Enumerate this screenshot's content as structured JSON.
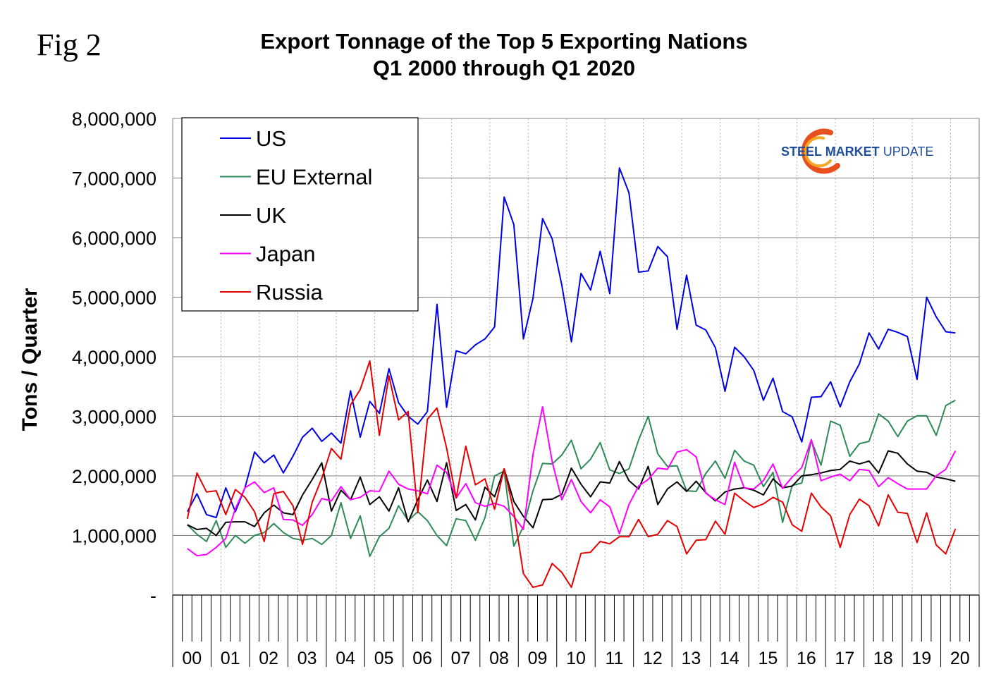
{
  "figure_label": "Fig 2",
  "logo": {
    "text_bold": "STEEL",
    "text_mid": " MARKET",
    "text_light": " UPDATE",
    "colors": {
      "text": "#1f4e9a",
      "arc_outer": "#e8501f",
      "arc_inner": "#f5a623"
    }
  },
  "chart_data": {
    "type": "line",
    "title": "Export Tonnage of the Top 5 Exporting Nations",
    "subtitle": "Q1 2000 through Q1 2020",
    "xlabel": "",
    "ylabel": "Tons / Quarter",
    "ylim": [
      0,
      8000000
    ],
    "y_ticks": [
      0,
      1000000,
      2000000,
      3000000,
      4000000,
      5000000,
      6000000,
      7000000,
      8000000
    ],
    "y_tick_labels": [
      "-",
      "1,000,000",
      "2,000,000",
      "3,000,000",
      "4,000,000",
      "5,000,000",
      "6,000,000",
      "7,000,000",
      "8,000,000"
    ],
    "x_year_labels": [
      "00",
      "01",
      "02",
      "03",
      "04",
      "05",
      "06",
      "07",
      "08",
      "09",
      "10",
      "11",
      "12",
      "13",
      "14",
      "15",
      "16",
      "17",
      "18",
      "19",
      "20"
    ],
    "x_quarters_per_year": 4,
    "x_total_quarters": 84,
    "grid": true,
    "legend_position": "top-left",
    "series": [
      {
        "name": "US",
        "color": "#0000e6",
        "values": [
          1400000,
          1700000,
          1350000,
          1300000,
          1800000,
          1400000,
          1800000,
          2400000,
          2220000,
          2350000,
          2050000,
          2330000,
          2650000,
          2800000,
          2580000,
          2720000,
          2550000,
          3430000,
          2650000,
          3250000,
          3050000,
          3800000,
          3230000,
          3000000,
          2870000,
          3080000,
          4880000,
          3150000,
          4100000,
          4050000,
          4200000,
          4300000,
          4500000,
          6680000,
          6220000,
          4300000,
          4980000,
          6320000,
          5980000,
          5200000,
          4250000,
          5400000,
          5120000,
          5770000,
          5060000,
          7170000,
          6750000,
          5420000,
          5440000,
          5850000,
          5680000,
          4460000,
          5370000,
          4530000,
          4450000,
          4150000,
          3420000,
          4160000,
          4000000,
          3770000,
          3270000,
          3640000,
          3080000,
          2990000,
          2570000,
          3320000,
          3330000,
          3580000,
          3160000,
          3580000,
          3880000,
          4400000,
          4130000,
          4460000,
          4410000,
          4340000,
          3620000,
          5000000,
          4670000,
          4420000,
          4400000
        ]
      },
      {
        "name": "EU External",
        "color": "#2e8b57",
        "values": [
          1180000,
          1020000,
          900000,
          1250000,
          800000,
          1000000,
          870000,
          1000000,
          1050000,
          1200000,
          1050000,
          950000,
          920000,
          950000,
          850000,
          1000000,
          1550000,
          950000,
          1330000,
          650000,
          980000,
          1120000,
          1500000,
          1250000,
          1400000,
          1250000,
          1000000,
          830000,
          1280000,
          1250000,
          920000,
          1300000,
          2000000,
          2080000,
          820000,
          1150000,
          1750000,
          2210000,
          2200000,
          2350000,
          2600000,
          2120000,
          2280000,
          2560000,
          2100000,
          2040000,
          2120000,
          2600000,
          3000000,
          2370000,
          2160000,
          2170000,
          1750000,
          1740000,
          2040000,
          2250000,
          1960000,
          2430000,
          2250000,
          2180000,
          1820000,
          2060000,
          1220000,
          1840000,
          1880000,
          2590000,
          2180000,
          2920000,
          2850000,
          2330000,
          2540000,
          2580000,
          3040000,
          2920000,
          2660000,
          2920000,
          3010000,
          3010000,
          2680000,
          3180000,
          3270000
        ]
      },
      {
        "name": "UK",
        "color": "#000000",
        "values": [
          1180000,
          1100000,
          1120000,
          1000000,
          1220000,
          1230000,
          1230000,
          1150000,
          1380000,
          1510000,
          1380000,
          1350000,
          1680000,
          1940000,
          2220000,
          1410000,
          1760000,
          1600000,
          1980000,
          1520000,
          1650000,
          1410000,
          1800000,
          1230000,
          1600000,
          1930000,
          1570000,
          2220000,
          1420000,
          1520000,
          1260000,
          1810000,
          1650000,
          2120000,
          1570000,
          1320000,
          1130000,
          1600000,
          1610000,
          1690000,
          2130000,
          1860000,
          1650000,
          1900000,
          1880000,
          2240000,
          1920000,
          1780000,
          2160000,
          1520000,
          1780000,
          1900000,
          1740000,
          1910000,
          1720000,
          1580000,
          1730000,
          1780000,
          1800000,
          1760000,
          1680000,
          1950000,
          1800000,
          1830000,
          2000000,
          2020000,
          2050000,
          2090000,
          2110000,
          2250000,
          2200000,
          2250000,
          2050000,
          2420000,
          2380000,
          2200000,
          2080000,
          2060000,
          1980000,
          1950000,
          1910000
        ]
      },
      {
        "name": "Japan",
        "color": "#ff00ff",
        "values": [
          780000,
          660000,
          680000,
          800000,
          950000,
          1450000,
          1800000,
          1900000,
          1720000,
          1800000,
          1270000,
          1260000,
          1170000,
          1350000,
          1620000,
          1580000,
          1820000,
          1600000,
          1640000,
          1750000,
          1740000,
          2080000,
          1860000,
          1780000,
          1750000,
          1700000,
          2180000,
          2060000,
          1630000,
          1870000,
          1550000,
          1490000,
          1540000,
          1490000,
          1320000,
          1100000,
          2360000,
          3160000,
          2240000,
          1600000,
          1940000,
          1570000,
          1380000,
          1600000,
          1480000,
          1030000,
          1520000,
          1830000,
          1940000,
          2130000,
          2110000,
          2400000,
          2440000,
          2320000,
          1710000,
          1600000,
          1520000,
          2230000,
          1800000,
          1780000,
          1920000,
          2200000,
          1790000,
          1980000,
          2140000,
          2610000,
          1920000,
          1980000,
          2030000,
          1920000,
          2110000,
          2090000,
          1820000,
          1970000,
          1870000,
          1780000,
          1780000,
          1780000,
          2000000,
          2110000,
          2420000
        ]
      },
      {
        "name": "Russia",
        "color": "#e60000",
        "values": [
          1280000,
          2050000,
          1730000,
          1750000,
          1350000,
          1770000,
          1640000,
          1400000,
          900000,
          1700000,
          1740000,
          1500000,
          850000,
          1560000,
          1960000,
          2460000,
          2280000,
          3190000,
          3450000,
          3930000,
          2680000,
          3680000,
          2940000,
          3080000,
          1380000,
          2950000,
          3140000,
          2470000,
          1630000,
          2500000,
          1850000,
          1950000,
          1440000,
          2120000,
          1400000,
          360000,
          130000,
          170000,
          530000,
          380000,
          130000,
          700000,
          720000,
          900000,
          860000,
          980000,
          980000,
          1270000,
          980000,
          1020000,
          1250000,
          1150000,
          690000,
          920000,
          930000,
          1240000,
          1020000,
          1710000,
          1580000,
          1470000,
          1530000,
          1640000,
          1560000,
          1180000,
          1070000,
          1710000,
          1480000,
          1330000,
          800000,
          1350000,
          1610000,
          1500000,
          1160000,
          1680000,
          1390000,
          1370000,
          880000,
          1380000,
          840000,
          690000,
          1110000
        ]
      }
    ]
  }
}
